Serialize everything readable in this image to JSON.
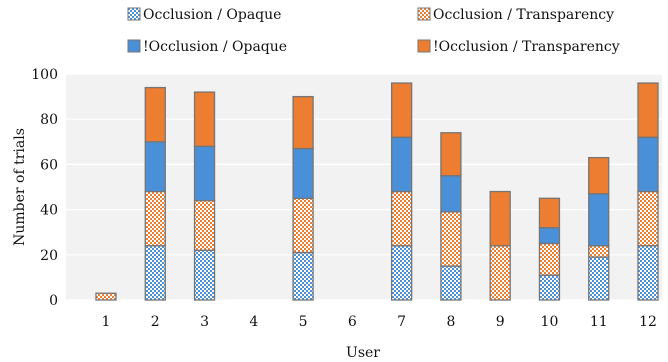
{
  "chart_data": {
    "type": "bar",
    "stacked": true,
    "xlabel": "User",
    "ylabel": "Number of trials",
    "ylim": [
      0,
      100
    ],
    "yticks": [
      0,
      20,
      40,
      60,
      80,
      100
    ],
    "categories": [
      "1",
      "2",
      "3",
      "4",
      "5",
      "6",
      "7",
      "8",
      "9",
      "10",
      "11",
      "12"
    ],
    "grid": true,
    "legend_position": "top",
    "series": [
      {
        "name": "Occlusion / Opaque",
        "color": "#4a90d9",
        "pattern": "checker",
        "values": [
          0,
          24,
          22,
          0,
          21,
          0,
          24,
          15,
          0,
          11,
          19,
          24
        ]
      },
      {
        "name": "Occlusion / Transparency",
        "color": "#ed7d31",
        "pattern": "checker",
        "values": [
          3,
          24,
          22,
          0,
          24,
          0,
          24,
          24,
          24,
          14,
          5,
          24
        ]
      },
      {
        "name": "!Occlusion / Opaque",
        "color": "#4a90d9",
        "pattern": "solid",
        "values": [
          0,
          22,
          24,
          0,
          22,
          0,
          24,
          16,
          0,
          7,
          23,
          24
        ]
      },
      {
        "name": "!Occlusion / Transparency",
        "color": "#ed7d31",
        "pattern": "solid",
        "values": [
          0,
          24,
          24,
          0,
          23,
          0,
          24,
          19,
          24,
          13,
          16,
          24
        ]
      }
    ]
  }
}
